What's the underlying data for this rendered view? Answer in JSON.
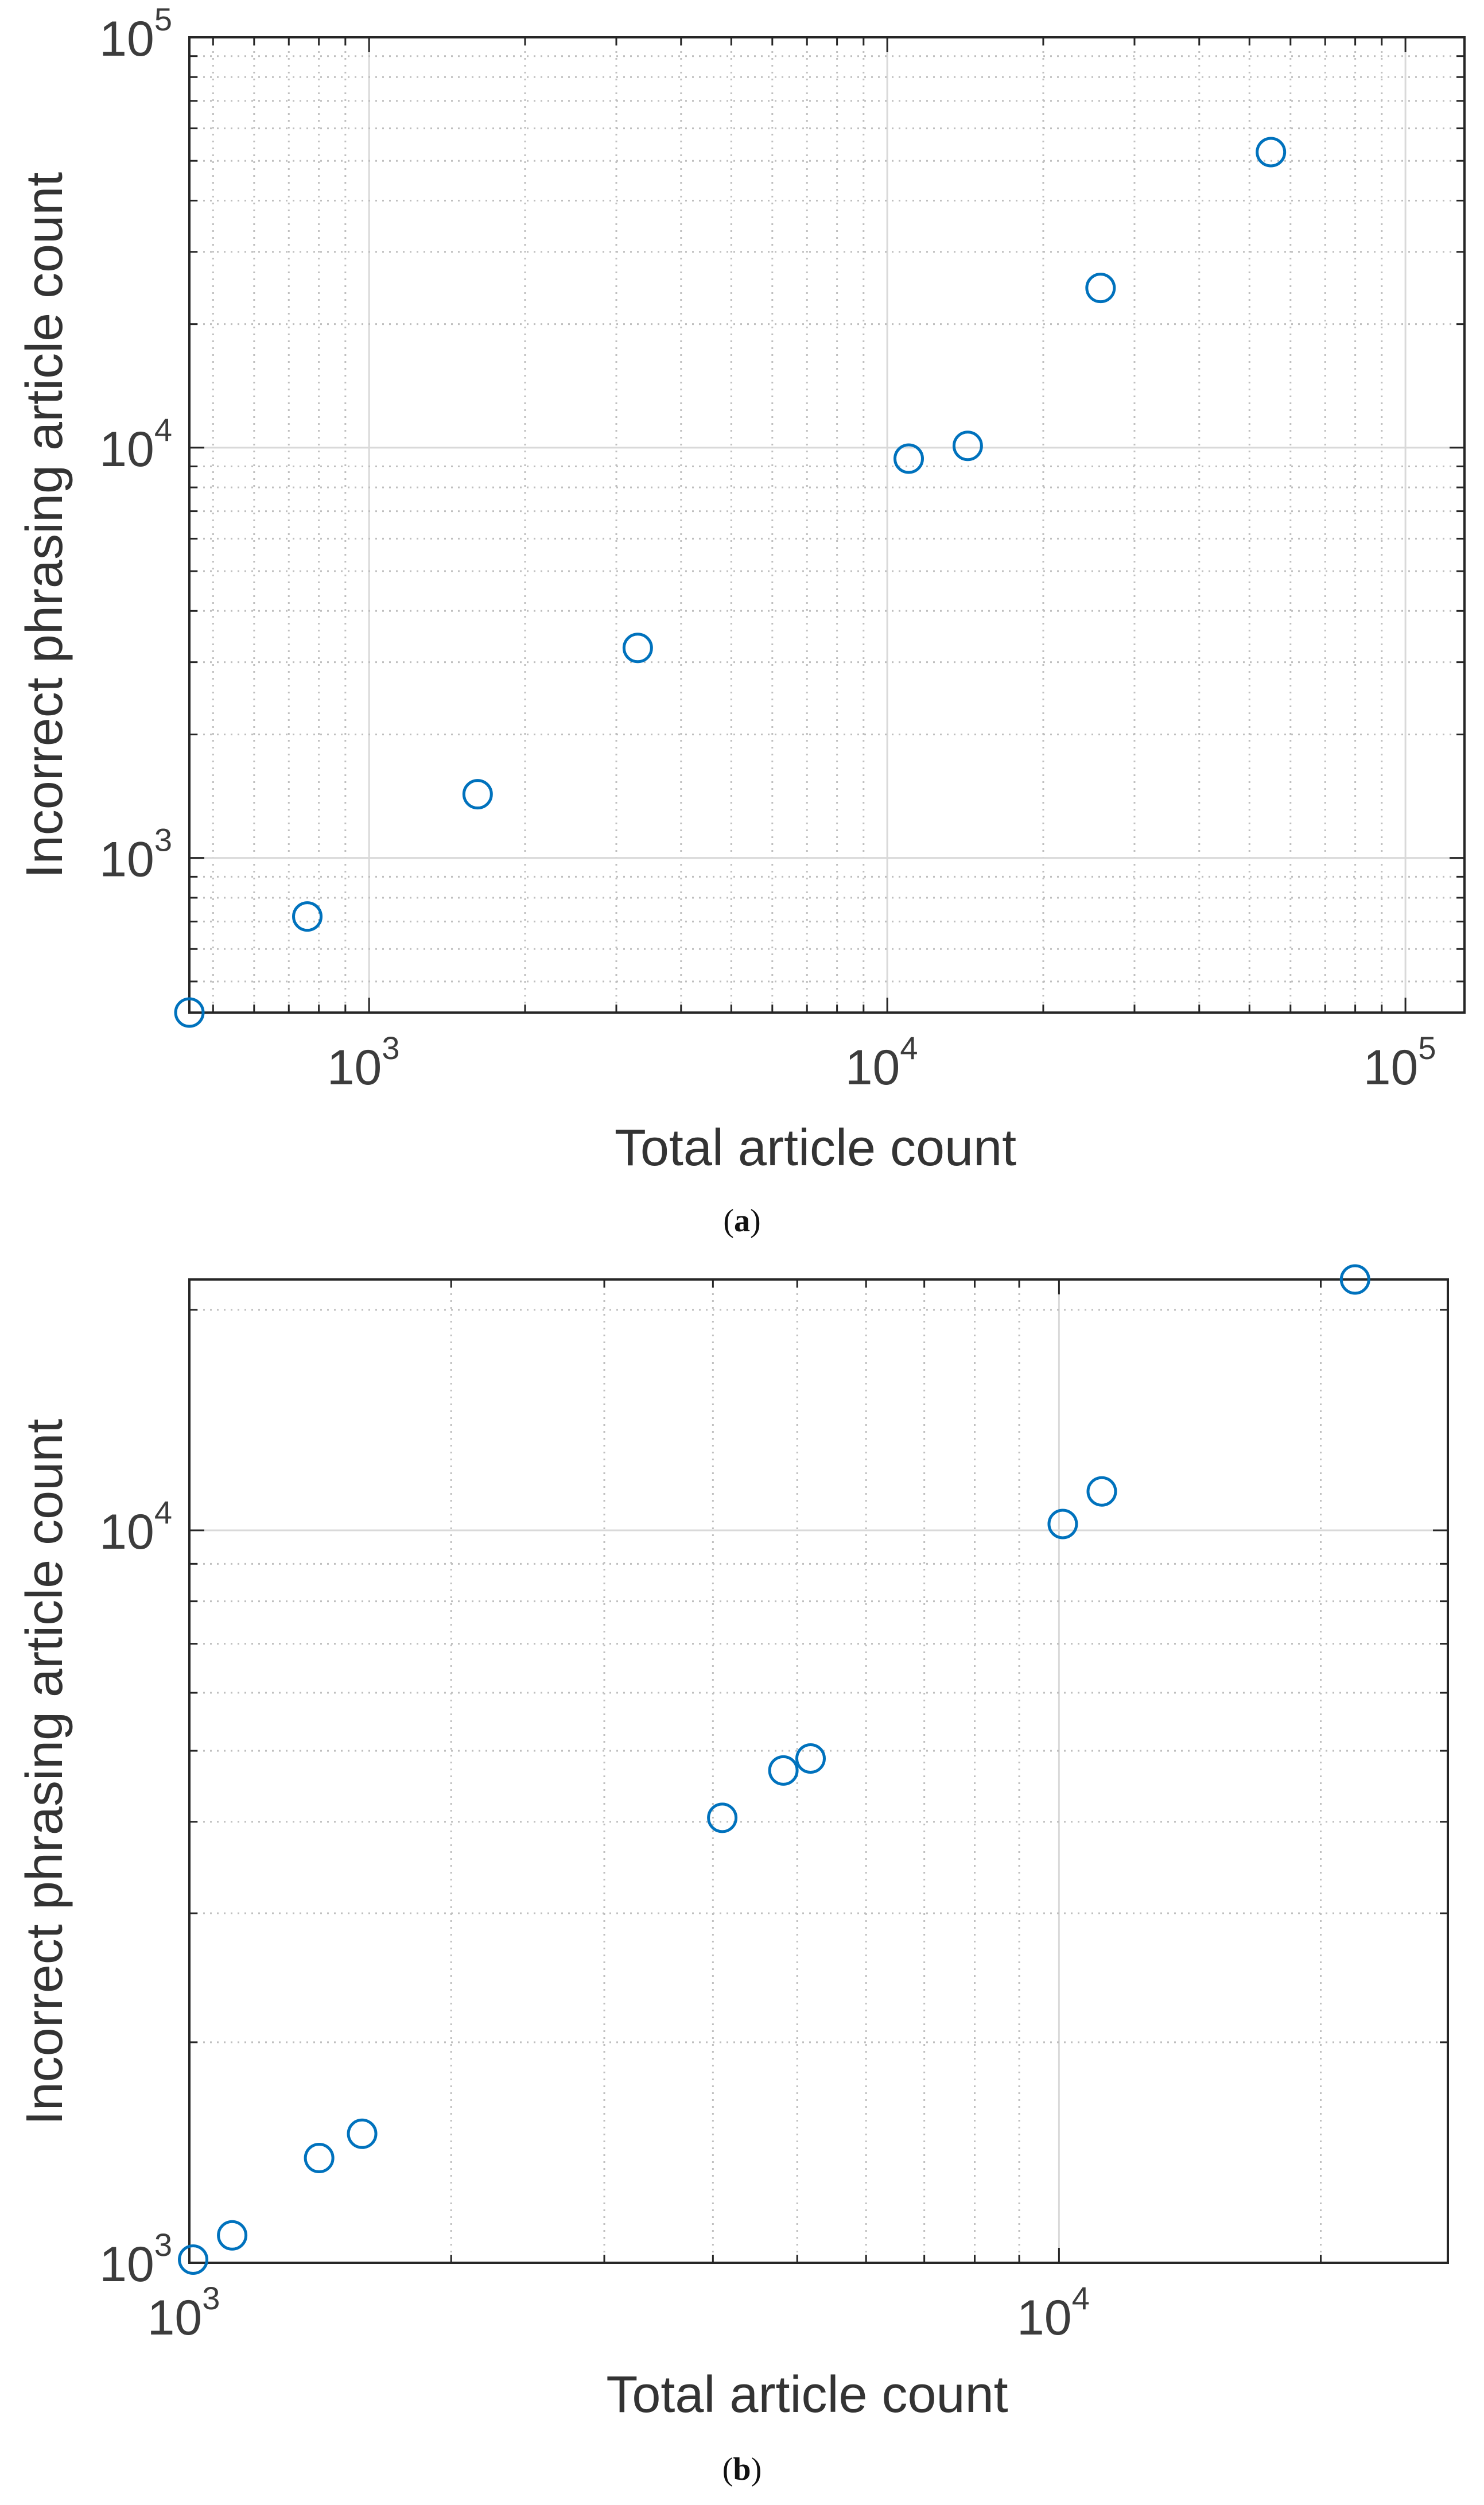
{
  "figure": {
    "caption_a": {
      "open": "(",
      "letter": "a",
      "close": ")"
    },
    "caption_b": {
      "open": "(",
      "letter": "b",
      "close": ")"
    }
  },
  "colors": {
    "marker": "#0072BD",
    "axis": "#262626",
    "grid_major": "#d9d9d9",
    "grid_minor": "#bfbfbf",
    "text": "#3c3c3c"
  },
  "chart_data": [
    {
      "id": "a",
      "type": "scatter",
      "title": "",
      "xlabel": "Total article count",
      "ylabel": "Incorrect phrasing article count",
      "xscale": "log",
      "yscale": "log",
      "xlim": [
        450,
        130000
      ],
      "ylim": [
        420,
        100000
      ],
      "xticks": [
        1000,
        10000,
        100000
      ],
      "yticks": [
        1000,
        10000,
        100000
      ],
      "xtick_labels": [
        {
          "base": "10",
          "exp": "3"
        },
        {
          "base": "10",
          "exp": "4"
        },
        {
          "base": "10",
          "exp": "5"
        }
      ],
      "ytick_labels": [
        {
          "base": "10",
          "exp": "3"
        },
        {
          "base": "10",
          "exp": "4"
        },
        {
          "base": "10",
          "exp": "5"
        }
      ],
      "grid": "major solid, minor dotted",
      "marker": "open circle",
      "x": [
        450,
        760,
        1620,
        3300,
        11000,
        14300,
        25800,
        55000
      ],
      "y": [
        420,
        720,
        1430,
        3250,
        9400,
        10100,
        24500,
        52500
      ]
    },
    {
      "id": "b",
      "type": "scatter",
      "title": "",
      "xlabel": "Total article count",
      "ylabel": "Incorrect phrasing article count",
      "xscale": "log",
      "yscale": "log",
      "xlim": [
        1000,
        28000
      ],
      "ylim": [
        1000,
        22000
      ],
      "xticks": [
        1000,
        10000
      ],
      "yticks": [
        1000,
        10000
      ],
      "xtick_labels": [
        {
          "base": "10",
          "exp": "3"
        },
        {
          "base": "10",
          "exp": "4"
        }
      ],
      "ytick_labels": [
        {
          "base": "10",
          "exp": "3"
        },
        {
          "base": "10",
          "exp": "4"
        }
      ],
      "grid": "major solid, minor dotted",
      "marker": "open circle",
      "x": [
        1010,
        1120,
        1410,
        1580,
        4100,
        4820,
        5180,
        10100,
        11200,
        21900
      ],
      "y": [
        1010,
        1090,
        1390,
        1500,
        4050,
        4700,
        4880,
        10200,
        11300,
        22000
      ]
    }
  ]
}
